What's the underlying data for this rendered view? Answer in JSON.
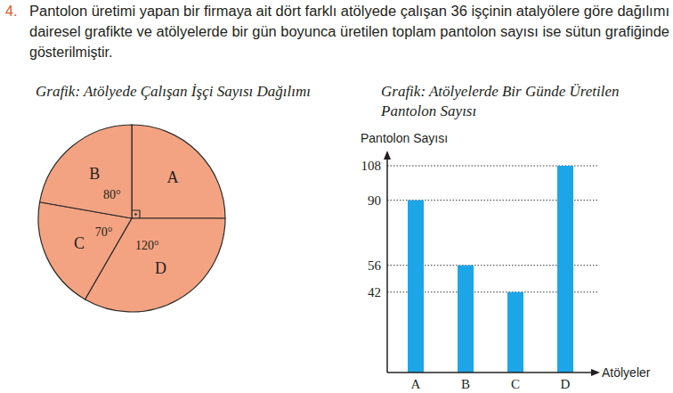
{
  "question": {
    "number": "4.",
    "lines": [
      "Pantolon üretimi yapan bir firmaya ait dört farklı atölyede çalışan 36 işçinin atalyölere göre dağılımı",
      "dairesel grafikte ve atölyelerde bir gün boyunca üretilen toplam pantolon sayısı ise sütun grafiğinde",
      "gösterilmiştir."
    ]
  },
  "chart_data": [
    {
      "type": "pie",
      "title": "Grafik: Atölyede Çalışan İşçi Sayısı Dağılımı",
      "categories": [
        "A",
        "D",
        "C",
        "B"
      ],
      "values": [
        90,
        120,
        70,
        80
      ],
      "value_labels": [
        null,
        "120°",
        "70°",
        "80°"
      ],
      "data_labels": true,
      "color": "#f3a381"
    },
    {
      "type": "bar",
      "title": "Grafik: Atölyelerde Bir Günde Üretilen Pantolon Sayısı",
      "y_label": "Pantolon Sayısı",
      "x_label": "Atölyeler",
      "categories": [
        "A",
        "B",
        "C",
        "D"
      ],
      "values": [
        90,
        56,
        42,
        108
      ],
      "color": "#1ca6e8",
      "ylim": [
        0,
        115
      ],
      "yticks": [
        42,
        56,
        90,
        108
      ],
      "grid": true
    }
  ]
}
